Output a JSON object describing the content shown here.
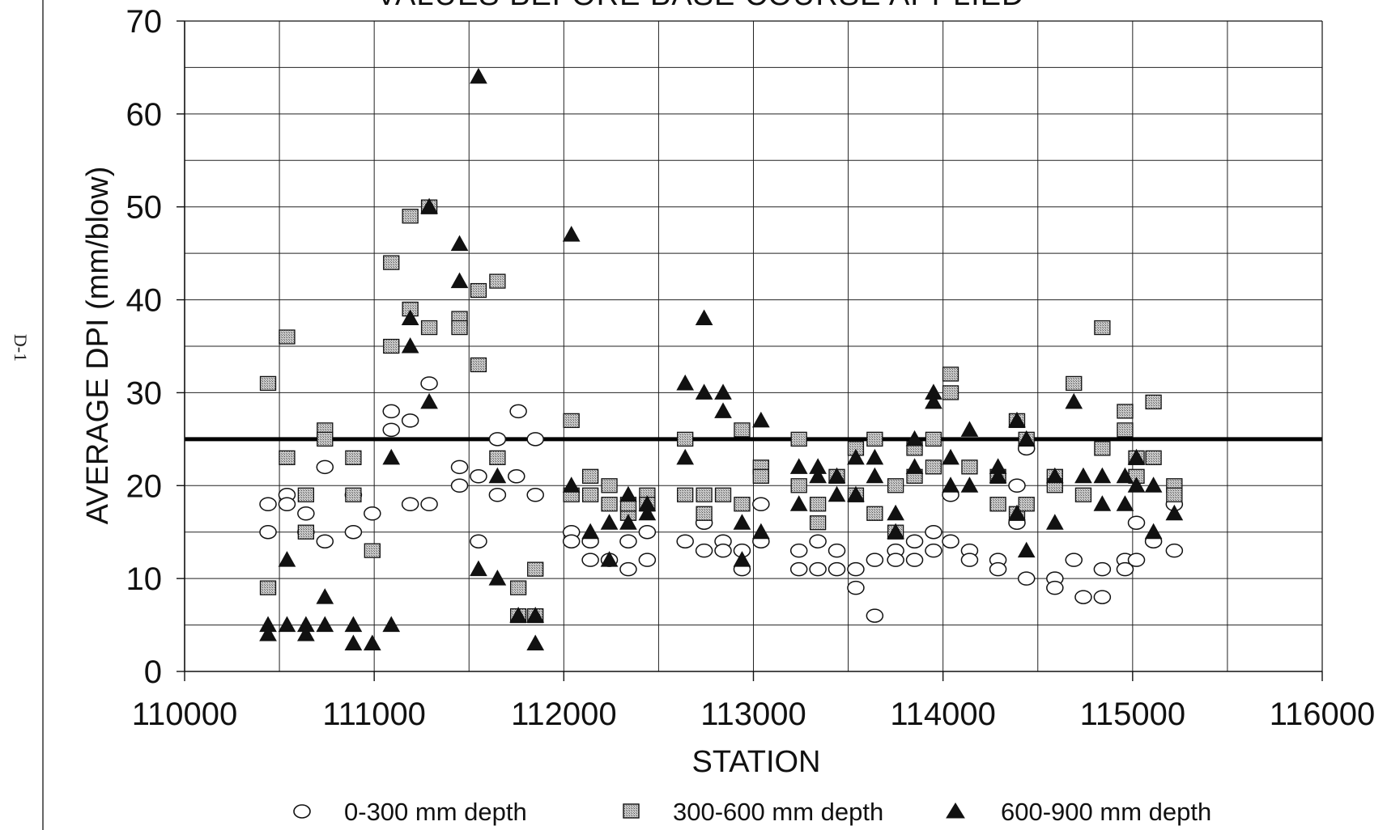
{
  "page_label": "D-1",
  "chart_data": {
    "type": "scatter",
    "title": "VALUES BEFORE BASE COURSE APPLIED",
    "xlabel": "STATION",
    "ylabel": "AVERAGE DPI  (mm/blow)",
    "xlim": [
      110000,
      116000
    ],
    "ylim": [
      0,
      70
    ],
    "x_ticks": [
      110000,
      111000,
      112000,
      113000,
      114000,
      115000,
      116000
    ],
    "y_ticks": [
      0,
      10,
      20,
      30,
      40,
      50,
      60,
      70
    ],
    "x_minor_step": 500,
    "y_minor_step": 5,
    "grid": true,
    "legend_position": "bottom",
    "reference_line": {
      "y": 25
    },
    "series": [
      {
        "name": "0-300 mm depth",
        "marker": "open-circle",
        "points": [
          [
            110440,
            18
          ],
          [
            110440,
            15
          ],
          [
            110540,
            19
          ],
          [
            110540,
            18
          ],
          [
            110640,
            17
          ],
          [
            110640,
            15
          ],
          [
            110740,
            22
          ],
          [
            110740,
            14
          ],
          [
            110890,
            15
          ],
          [
            110890,
            19
          ],
          [
            110990,
            17
          ],
          [
            111090,
            28
          ],
          [
            111090,
            26
          ],
          [
            111190,
            27
          ],
          [
            111190,
            18
          ],
          [
            111290,
            31
          ],
          [
            111290,
            18
          ],
          [
            111450,
            22
          ],
          [
            111450,
            20
          ],
          [
            111550,
            21
          ],
          [
            111550,
            14
          ],
          [
            111650,
            25
          ],
          [
            111650,
            19
          ],
          [
            111750,
            21
          ],
          [
            111760,
            28
          ],
          [
            111850,
            25
          ],
          [
            111850,
            19
          ],
          [
            112040,
            15
          ],
          [
            112040,
            14
          ],
          [
            112140,
            14
          ],
          [
            112140,
            12
          ],
          [
            112240,
            12
          ],
          [
            112340,
            14
          ],
          [
            112340,
            11
          ],
          [
            112440,
            15
          ],
          [
            112440,
            12
          ],
          [
            112640,
            14
          ],
          [
            112740,
            16
          ],
          [
            112740,
            13
          ],
          [
            112840,
            14
          ],
          [
            112840,
            13
          ],
          [
            112940,
            13
          ],
          [
            112940,
            11
          ],
          [
            113040,
            18
          ],
          [
            113040,
            14
          ],
          [
            113240,
            13
          ],
          [
            113240,
            11
          ],
          [
            113340,
            14
          ],
          [
            113340,
            11
          ],
          [
            113440,
            13
          ],
          [
            113440,
            11
          ],
          [
            113540,
            11
          ],
          [
            113540,
            9
          ],
          [
            113640,
            12
          ],
          [
            113640,
            6
          ],
          [
            113750,
            13
          ],
          [
            113750,
            12
          ],
          [
            113850,
            14
          ],
          [
            113850,
            12
          ],
          [
            113950,
            15
          ],
          [
            113950,
            13
          ],
          [
            114040,
            19
          ],
          [
            114040,
            14
          ],
          [
            114140,
            13
          ],
          [
            114140,
            12
          ],
          [
            114290,
            12
          ],
          [
            114290,
            11
          ],
          [
            114390,
            20
          ],
          [
            114390,
            16
          ],
          [
            114440,
            24
          ],
          [
            114440,
            10
          ],
          [
            114590,
            10
          ],
          [
            114590,
            9
          ],
          [
            114690,
            12
          ],
          [
            114740,
            8
          ],
          [
            114840,
            11
          ],
          [
            114840,
            8
          ],
          [
            114960,
            12
          ],
          [
            114960,
            11
          ],
          [
            115020,
            16
          ],
          [
            115020,
            12
          ],
          [
            115110,
            14
          ],
          [
            115220,
            18
          ],
          [
            115220,
            13
          ]
        ]
      },
      {
        "name": "300-600 mm depth",
        "marker": "filled-square",
        "points": [
          [
            110440,
            31
          ],
          [
            110440,
            9
          ],
          [
            110540,
            36
          ],
          [
            110540,
            23
          ],
          [
            110640,
            19
          ],
          [
            110640,
            15
          ],
          [
            110740,
            26
          ],
          [
            110740,
            25
          ],
          [
            110890,
            23
          ],
          [
            110890,
            19
          ],
          [
            110990,
            13
          ],
          [
            111090,
            44
          ],
          [
            111090,
            35
          ],
          [
            111190,
            49
          ],
          [
            111190,
            39
          ],
          [
            111290,
            50
          ],
          [
            111290,
            37
          ],
          [
            111450,
            38
          ],
          [
            111450,
            37
          ],
          [
            111550,
            41
          ],
          [
            111550,
            33
          ],
          [
            111650,
            42
          ],
          [
            111650,
            23
          ],
          [
            111760,
            9
          ],
          [
            111760,
            6
          ],
          [
            111850,
            11
          ],
          [
            111850,
            6
          ],
          [
            112040,
            27
          ],
          [
            112040,
            19
          ],
          [
            112140,
            21
          ],
          [
            112140,
            19
          ],
          [
            112240,
            20
          ],
          [
            112240,
            18
          ],
          [
            112340,
            17
          ],
          [
            112340,
            18
          ],
          [
            112440,
            19
          ],
          [
            112440,
            18
          ],
          [
            112640,
            25
          ],
          [
            112640,
            19
          ],
          [
            112740,
            19
          ],
          [
            112740,
            17
          ],
          [
            112840,
            19
          ],
          [
            112940,
            26
          ],
          [
            112940,
            18
          ],
          [
            113040,
            22
          ],
          [
            113040,
            21
          ],
          [
            113240,
            25
          ],
          [
            113240,
            20
          ],
          [
            113340,
            18
          ],
          [
            113340,
            16
          ],
          [
            113440,
            21
          ],
          [
            113540,
            24
          ],
          [
            113540,
            19
          ],
          [
            113640,
            25
          ],
          [
            113640,
            17
          ],
          [
            113750,
            20
          ],
          [
            113750,
            15
          ],
          [
            113850,
            24
          ],
          [
            113850,
            21
          ],
          [
            113950,
            25
          ],
          [
            113950,
            22
          ],
          [
            114040,
            32
          ],
          [
            114040,
            30
          ],
          [
            114140,
            22
          ],
          [
            114290,
            21
          ],
          [
            114290,
            18
          ],
          [
            114390,
            27
          ],
          [
            114390,
            17
          ],
          [
            114440,
            25
          ],
          [
            114440,
            18
          ],
          [
            114590,
            21
          ],
          [
            114590,
            20
          ],
          [
            114690,
            31
          ],
          [
            114740,
            19
          ],
          [
            114840,
            37
          ],
          [
            114840,
            24
          ],
          [
            114960,
            28
          ],
          [
            114960,
            26
          ],
          [
            115020,
            23
          ],
          [
            115020,
            21
          ],
          [
            115110,
            29
          ],
          [
            115110,
            23
          ],
          [
            115220,
            20
          ],
          [
            115220,
            19
          ]
        ]
      },
      {
        "name": "600-900 mm depth",
        "marker": "filled-triangle",
        "points": [
          [
            110440,
            5
          ],
          [
            110440,
            4
          ],
          [
            110540,
            12
          ],
          [
            110540,
            5
          ],
          [
            110640,
            5
          ],
          [
            110640,
            4
          ],
          [
            110740,
            8
          ],
          [
            110740,
            5
          ],
          [
            110890,
            5
          ],
          [
            110890,
            3
          ],
          [
            110990,
            3
          ],
          [
            111090,
            23
          ],
          [
            111090,
            5
          ],
          [
            111190,
            38
          ],
          [
            111190,
            35
          ],
          [
            111290,
            50
          ],
          [
            111290,
            29
          ],
          [
            111450,
            46
          ],
          [
            111450,
            42
          ],
          [
            111550,
            64
          ],
          [
            111550,
            11
          ],
          [
            111650,
            21
          ],
          [
            111650,
            10
          ],
          [
            111760,
            6
          ],
          [
            111850,
            6
          ],
          [
            111850,
            3
          ],
          [
            112040,
            47
          ],
          [
            112040,
            20
          ],
          [
            112140,
            15
          ],
          [
            112240,
            16
          ],
          [
            112240,
            12
          ],
          [
            112340,
            19
          ],
          [
            112340,
            16
          ],
          [
            112440,
            18
          ],
          [
            112440,
            17
          ],
          [
            112640,
            31
          ],
          [
            112640,
            23
          ],
          [
            112740,
            38
          ],
          [
            112740,
            30
          ],
          [
            112840,
            30
          ],
          [
            112840,
            28
          ],
          [
            112940,
            16
          ],
          [
            112940,
            12
          ],
          [
            113040,
            27
          ],
          [
            113040,
            15
          ],
          [
            113240,
            22
          ],
          [
            113240,
            18
          ],
          [
            113340,
            22
          ],
          [
            113340,
            21
          ],
          [
            113440,
            21
          ],
          [
            113440,
            19
          ],
          [
            113540,
            23
          ],
          [
            113540,
            19
          ],
          [
            113640,
            23
          ],
          [
            113640,
            21
          ],
          [
            113750,
            17
          ],
          [
            113750,
            15
          ],
          [
            113850,
            25
          ],
          [
            113850,
            22
          ],
          [
            113950,
            30
          ],
          [
            113950,
            29
          ],
          [
            114040,
            23
          ],
          [
            114040,
            20
          ],
          [
            114140,
            26
          ],
          [
            114140,
            20
          ],
          [
            114290,
            22
          ],
          [
            114290,
            21
          ],
          [
            114390,
            27
          ],
          [
            114390,
            17
          ],
          [
            114440,
            25
          ],
          [
            114440,
            13
          ],
          [
            114590,
            21
          ],
          [
            114590,
            16
          ],
          [
            114690,
            29
          ],
          [
            114740,
            21
          ],
          [
            114840,
            21
          ],
          [
            114840,
            18
          ],
          [
            114960,
            21
          ],
          [
            114960,
            18
          ],
          [
            115020,
            23
          ],
          [
            115020,
            20
          ],
          [
            115110,
            20
          ],
          [
            115110,
            15
          ],
          [
            115220,
            17
          ]
        ]
      }
    ]
  }
}
